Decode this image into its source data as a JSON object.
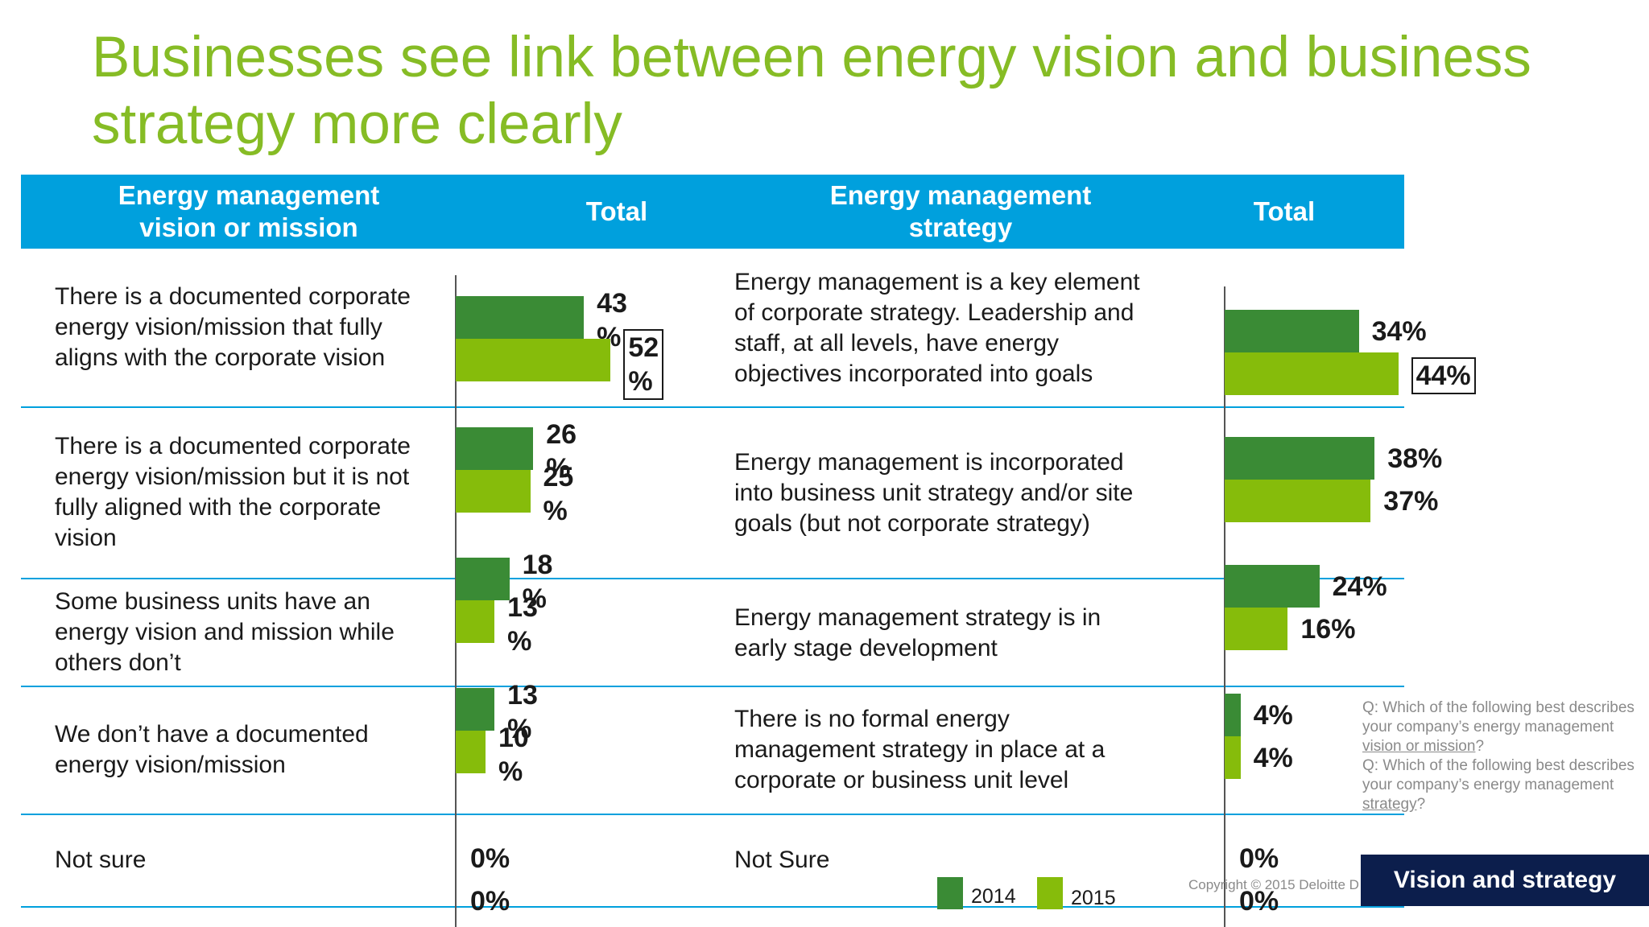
{
  "title": "Businesses see link between energy vision and business strategy more clearly",
  "header": {
    "col1": "Energy management\nvision or mission",
    "col2": "Total",
    "col3": "Energy management\nstrategy",
    "col4": "Total"
  },
  "colors": {
    "2014": "#3a8b35",
    "2015": "#86bc0b",
    "header": "#00a0dd",
    "title": "#86bc25"
  },
  "chart_data": [
    {
      "type": "bar",
      "orientation": "horizontal",
      "title": "Energy management vision or mission",
      "categories": [
        "There is a documented corporate energy vision/mission that fully aligns with the corporate vision",
        "There is a documented corporate energy vision/mission but it is not fully aligned with the corporate vision",
        "Some business units have an energy vision and mission while others don’t",
        "We don’t have a documented energy vision/mission",
        "Not sure"
      ],
      "series": [
        {
          "name": "2014",
          "values": [
            43,
            26,
            18,
            13,
            0
          ]
        },
        {
          "name": "2015",
          "values": [
            52,
            25,
            13,
            10,
            0
          ]
        }
      ],
      "labels_2014": [
        "43\n%",
        "26\n%",
        "18\n%",
        "13\n%",
        "0%"
      ],
      "labels_2015": [
        "52\n%",
        "25\n%",
        "13\n%",
        "10\n%",
        "0%"
      ],
      "highlighted": [
        {
          "series": "2015",
          "index": 0
        }
      ],
      "xlim": [
        0,
        100
      ]
    },
    {
      "type": "bar",
      "orientation": "horizontal",
      "title": "Energy management strategy",
      "categories": [
        "Energy management is a key element of corporate strategy. Leadership and staff, at all levels, have energy objectives incorporated into goals",
        "Energy management is incorporated into business unit strategy and/or site goals (but not corporate strategy)",
        "Energy management strategy is in early stage development",
        "There is no formal energy management strategy in place at a corporate or business unit level",
        "Not Sure"
      ],
      "series": [
        {
          "name": "2014",
          "values": [
            34,
            38,
            24,
            4,
            0
          ]
        },
        {
          "name": "2015",
          "values": [
            44,
            37,
            16,
            4,
            0
          ]
        }
      ],
      "labels_2014": [
        "34%",
        "38%",
        "24%",
        "4%",
        "0%"
      ],
      "labels_2015": [
        "44%",
        "37%",
        "16%",
        "4%",
        "0%"
      ],
      "highlighted": [
        {
          "series": "2015",
          "index": 0
        }
      ],
      "xlim": [
        0,
        100
      ]
    }
  ],
  "left_rows_text": [
    "There is a documented corporate\nenergy vision/mission that fully\naligns with the corporate vision",
    "There is a documented corporate\nenergy vision/mission but it is not\nfully aligned with the corporate\nvision",
    "Some business units have an\nenergy vision and mission while\nothers don’t",
    "We don’t have a documented\nenergy vision/mission",
    "Not sure"
  ],
  "right_rows_text": [
    "Energy management is a key element\nof corporate strategy. Leadership and\nstaff, at all levels, have energy\nobjectives incorporated into goals",
    "Energy management is incorporated\ninto business unit strategy and/or site\ngoals (but not corporate strategy)",
    "Energy management strategy is in\nearly stage development",
    "There is no formal energy\nmanagement strategy in place at a\ncorporate or business unit level",
    "Not Sure"
  ],
  "legend": [
    "2014",
    "2015"
  ],
  "questions": {
    "q1_prefix": "Q: Which of the following best describes your company’s energy management ",
    "q1_underlined": "vision or mission",
    "q1_suffix": "?",
    "q2_prefix": "Q: Which of the following best describes your company’s energy management ",
    "q2_underlined": "strategy",
    "q2_suffix": "?"
  },
  "copyright": "Copyright © 2015 Deloitte D",
  "badge": "Vision and strategy"
}
